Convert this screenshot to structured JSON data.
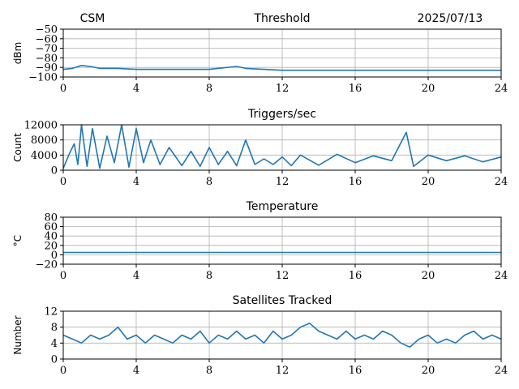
{
  "header": {
    "left": "CSM",
    "right": "2025/07/13"
  },
  "colors": {
    "series": "#1f77b4"
  },
  "chart_data": [
    {
      "type": "line",
      "title": "Threshold",
      "xlabel": "",
      "ylabel": "dBm",
      "xlim": [
        0,
        24
      ],
      "ylim": [
        -100,
        -50
      ],
      "xticks": [
        0,
        4,
        8,
        12,
        16,
        20,
        24
      ],
      "yticks": [
        -50,
        -60,
        -70,
        -80,
        -90,
        -100
      ],
      "grid": true,
      "series": [
        {
          "values": [
            [
              0,
              -92
            ],
            [
              0.5,
              -91
            ],
            [
              1,
              -88
            ],
            [
              1.5,
              -89
            ],
            [
              2,
              -91
            ],
            [
              3,
              -91
            ],
            [
              4,
              -92
            ],
            [
              6,
              -92
            ],
            [
              8,
              -92
            ],
            [
              9.5,
              -89
            ],
            [
              10,
              -91
            ],
            [
              12,
              -93
            ],
            [
              16,
              -93
            ],
            [
              20,
              -93
            ],
            [
              24,
              -93
            ]
          ]
        }
      ]
    },
    {
      "type": "line",
      "title": "Triggers/sec",
      "xlabel": "",
      "ylabel": "Count",
      "xlim": [
        0,
        24
      ],
      "ylim": [
        0,
        12000
      ],
      "xticks": [
        0,
        4,
        8,
        12,
        16,
        20,
        24
      ],
      "yticks": [
        0,
        4000,
        8000,
        12000
      ],
      "grid": true,
      "series": [
        {
          "values": [
            [
              0,
              500
            ],
            [
              0.3,
              4000
            ],
            [
              0.6,
              7000
            ],
            [
              0.8,
              1500
            ],
            [
              1,
              12000
            ],
            [
              1.3,
              1000
            ],
            [
              1.6,
              11000
            ],
            [
              2,
              500
            ],
            [
              2.4,
              9000
            ],
            [
              2.8,
              2000
            ],
            [
              3.2,
              12000
            ],
            [
              3.6,
              800
            ],
            [
              4,
              11000
            ],
            [
              4.4,
              2000
            ],
            [
              4.8,
              8000
            ],
            [
              5.3,
              1500
            ],
            [
              5.8,
              6000
            ],
            [
              6.5,
              1200
            ],
            [
              7,
              5000
            ],
            [
              7.5,
              1000
            ],
            [
              8,
              6000
            ],
            [
              8.5,
              1500
            ],
            [
              9,
              5000
            ],
            [
              9.5,
              1200
            ],
            [
              10,
              8000
            ],
            [
              10.5,
              1500
            ],
            [
              11,
              3000
            ],
            [
              11.5,
              1500
            ],
            [
              12,
              3500
            ],
            [
              12.5,
              1200
            ],
            [
              13,
              4000
            ],
            [
              14,
              1300
            ],
            [
              15,
              4200
            ],
            [
              16,
              2000
            ],
            [
              17,
              3800
            ],
            [
              18,
              2500
            ],
            [
              18.8,
              10000
            ],
            [
              19.2,
              1000
            ],
            [
              20,
              4000
            ],
            [
              21,
              2500
            ],
            [
              22,
              3800
            ],
            [
              23,
              2200
            ],
            [
              24,
              3500
            ]
          ]
        }
      ]
    },
    {
      "type": "line",
      "title": "Temperature",
      "xlabel": "",
      "ylabel": "°C",
      "xlim": [
        0,
        24
      ],
      "ylim": [
        -20,
        80
      ],
      "xticks": [
        0,
        4,
        8,
        12,
        16,
        20,
        24
      ],
      "yticks": [
        -20,
        0,
        20,
        40,
        60,
        80
      ],
      "grid": true,
      "series": [
        {
          "values": [
            [
              0,
              5
            ],
            [
              24,
              5
            ]
          ]
        }
      ]
    },
    {
      "type": "line",
      "title": "Satellites Tracked",
      "xlabel": "",
      "ylabel": "Number",
      "xlim": [
        0,
        24
      ],
      "ylim": [
        0,
        12
      ],
      "xticks": [
        0,
        4,
        8,
        12,
        16,
        20,
        24
      ],
      "yticks": [
        0,
        4,
        8,
        12
      ],
      "grid": true,
      "series": [
        {
          "values": [
            [
              0,
              6
            ],
            [
              0.5,
              5
            ],
            [
              1,
              4
            ],
            [
              1.5,
              6
            ],
            [
              2,
              5
            ],
            [
              2.5,
              6
            ],
            [
              3,
              8
            ],
            [
              3.5,
              5
            ],
            [
              4,
              6
            ],
            [
              4.5,
              4
            ],
            [
              5,
              6
            ],
            [
              5.5,
              5
            ],
            [
              6,
              4
            ],
            [
              6.5,
              6
            ],
            [
              7,
              5
            ],
            [
              7.5,
              7
            ],
            [
              8,
              4
            ],
            [
              8.5,
              6
            ],
            [
              9,
              5
            ],
            [
              9.5,
              7
            ],
            [
              10,
              5
            ],
            [
              10.5,
              6
            ],
            [
              11,
              4
            ],
            [
              11.5,
              7
            ],
            [
              12,
              5
            ],
            [
              12.5,
              6
            ],
            [
              13,
              8
            ],
            [
              13.5,
              9
            ],
            [
              14,
              7
            ],
            [
              14.5,
              6
            ],
            [
              15,
              5
            ],
            [
              15.5,
              7
            ],
            [
              16,
              5
            ],
            [
              16.5,
              6
            ],
            [
              17,
              5
            ],
            [
              17.5,
              7
            ],
            [
              18,
              6
            ],
            [
              18.5,
              4
            ],
            [
              19,
              3
            ],
            [
              19.5,
              5
            ],
            [
              20,
              6
            ],
            [
              20.5,
              4
            ],
            [
              21,
              5
            ],
            [
              21.5,
              4
            ],
            [
              22,
              6
            ],
            [
              22.5,
              7
            ],
            [
              23,
              5
            ],
            [
              23.5,
              6
            ],
            [
              24,
              5
            ]
          ]
        }
      ]
    }
  ]
}
